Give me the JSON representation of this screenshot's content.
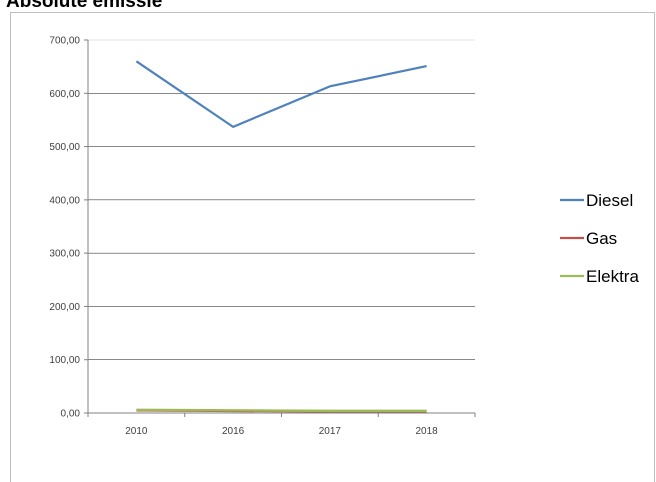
{
  "chart_data": {
    "type": "line",
    "title": "Absolute emissie",
    "categories": [
      "2010",
      "2016",
      "2017",
      "2018"
    ],
    "ylim": [
      0,
      700
    ],
    "yticks": [
      "0,00",
      "100,00",
      "200,00",
      "300,00",
      "400,00",
      "500,00",
      "600,00",
      "700,00"
    ],
    "grid": true,
    "legend_position": "right",
    "series": [
      {
        "name": "Diesel",
        "values": [
          660,
          537,
          613,
          651
        ],
        "color": "#4f81bd"
      },
      {
        "name": "Gas",
        "values": [
          5,
          4,
          3,
          3
        ],
        "color": "#c0504d"
      },
      {
        "name": "Elektra",
        "values": [
          6,
          5,
          4,
          4
        ],
        "color": "#9bbb59"
      }
    ]
  }
}
